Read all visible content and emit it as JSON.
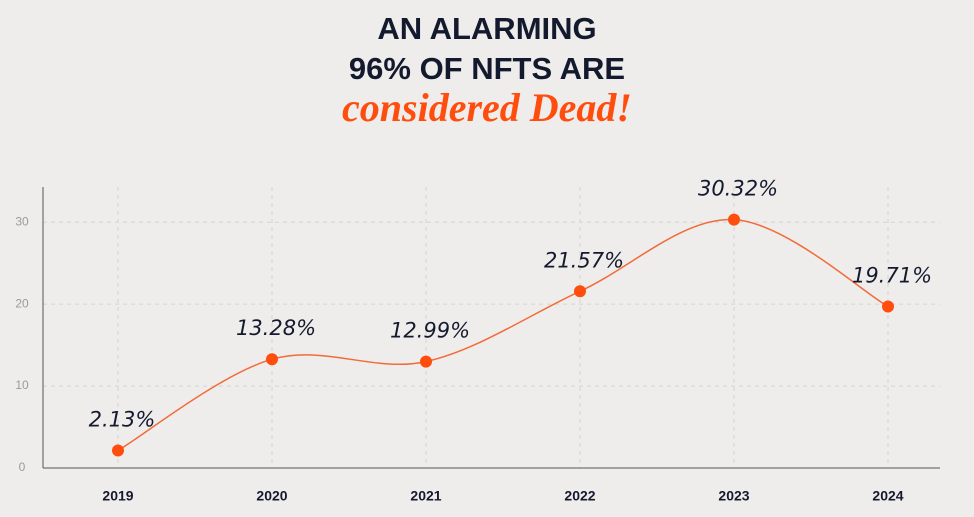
{
  "chart_data": {
    "type": "line",
    "title": [
      "AN ALARMING",
      "96% OF NFTS ARE"
    ],
    "subtitle": "considered Dead!",
    "categories": [
      "2019",
      "2020",
      "2021",
      "2022",
      "2023",
      "2024"
    ],
    "values": [
      2.13,
      13.28,
      12.99,
      21.57,
      30.32,
      19.71
    ],
    "value_labels": [
      "2.13%",
      "13.28%",
      "12.99%",
      "21.57%",
      "30.32%",
      "19.71%"
    ],
    "color": "#f26b3a",
    "marker_color": "#ff4d0d",
    "ylim": [
      0,
      34.3
    ],
    "yticks": [
      0,
      10,
      20,
      30
    ],
    "grid": true
  }
}
